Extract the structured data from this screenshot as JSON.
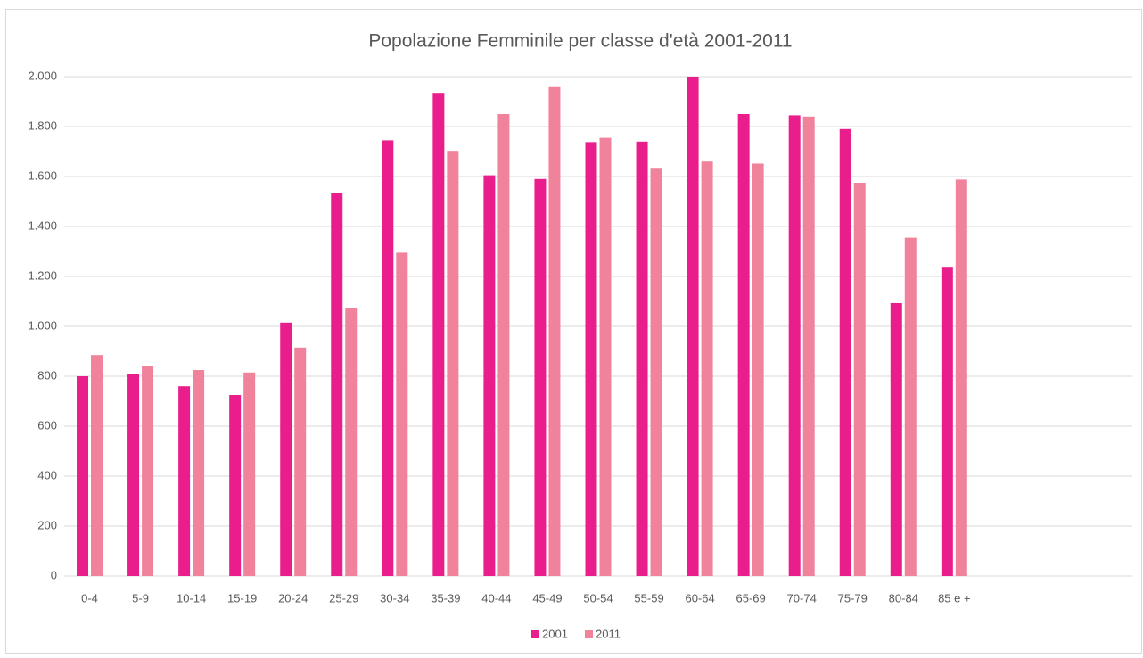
{
  "chart_data": {
    "type": "bar",
    "title": "Popolazione Femminile per classe d'età  2001-2011",
    "categories": [
      "0-4",
      "5-9",
      "10-14",
      "15-19",
      "20-24",
      "25-29",
      "30-34",
      "35-39",
      "40-44",
      "45-49",
      "50-54",
      "55-59",
      "60-64",
      "65-69",
      "70-74",
      "75-79",
      "80-84",
      "85 e +",
      null,
      null,
      null
    ],
    "series": [
      {
        "name": "2001",
        "color": "#e91e8c",
        "values": [
          800,
          810,
          760,
          725,
          1015,
          1535,
          1745,
          1935,
          1605,
          1590,
          1738,
          1740,
          2000,
          1850,
          1845,
          1790,
          1093,
          1235,
          null,
          null,
          null
        ]
      },
      {
        "name": "2011",
        "color": "#f0839b",
        "values": [
          885,
          840,
          825,
          815,
          915,
          1072,
          1295,
          1703,
          1850,
          1958,
          1755,
          1635,
          1660,
          1652,
          1840,
          1575,
          1355,
          1588,
          null,
          null,
          null
        ]
      }
    ],
    "ylim": [
      0,
      2000
    ],
    "yticks": [
      0,
      200,
      400,
      600,
      800,
      {
        "value": 1000,
        "label": "1.000"
      },
      {
        "value": 1200,
        "label": "1.200"
      },
      {
        "value": 1400,
        "label": "1.400"
      },
      {
        "value": 1600,
        "label": "1.600"
      },
      {
        "value": 1800,
        "label": "1.800"
      },
      {
        "value": 2000,
        "label": "2.000"
      }
    ],
    "grid": true,
    "legend": "bottom"
  }
}
